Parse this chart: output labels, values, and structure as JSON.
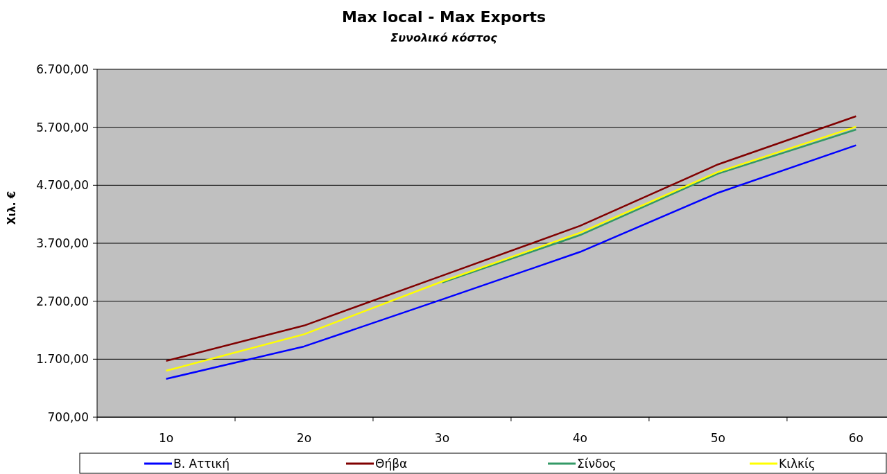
{
  "chart_data": {
    "type": "line",
    "title": "Max local - Max Exports",
    "subtitle": "Συνολικό κόστος",
    "ylabel": "Χιλ. €",
    "categories": [
      "1o",
      "2o",
      "3o",
      "4o",
      "5o",
      "6o"
    ],
    "series": [
      {
        "name": "Β. Αττική",
        "color": "#0000ff",
        "values": [
          1360,
          1920,
          2730,
          3550,
          4570,
          5390
        ]
      },
      {
        "name": "Θήβα",
        "color": "#800000",
        "values": [
          1670,
          2280,
          3140,
          4000,
          5060,
          5890
        ]
      },
      {
        "name": "Σίνδος",
        "color": "#339966",
        "values": [
          null,
          null,
          3020,
          3840,
          4900,
          5660
        ]
      },
      {
        "name": "Κιλκίς",
        "color": "#ffff00",
        "values": [
          1500,
          2130,
          3040,
          3880,
          4930,
          5710
        ]
      }
    ],
    "ylim": [
      700,
      6700
    ],
    "yticks": [
      {
        "value": 700,
        "label": "700,00"
      },
      {
        "value": 1700,
        "label": "1.700,00"
      },
      {
        "value": 2700,
        "label": "2.700,00"
      },
      {
        "value": 3700,
        "label": "3.700,00"
      },
      {
        "value": 4700,
        "label": "4.700,00"
      },
      {
        "value": 5700,
        "label": "5.700,00"
      },
      {
        "value": 6700,
        "label": "6.700,00"
      }
    ],
    "grid": "y",
    "legend": "bottom",
    "marker": "none",
    "line_style": "solid"
  }
}
